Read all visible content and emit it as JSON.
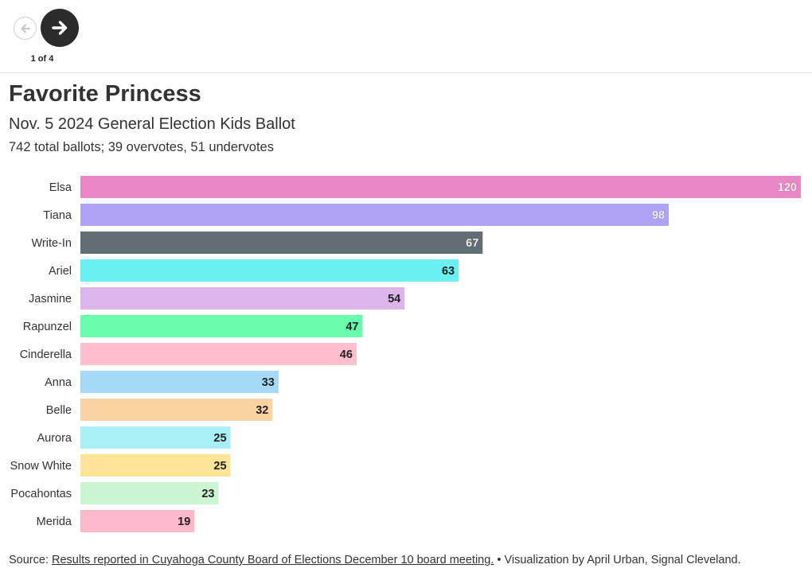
{
  "navigation": {
    "prev_icon": "arrow-left-icon",
    "next_icon": "arrow-right-icon",
    "page_indicator": "1 of 4"
  },
  "header": {
    "title": "Favorite Princess",
    "subtitle": "Nov. 5 2024 General Election Kids Ballot",
    "note": "742 total ballots; 39 overvotes, 51 undervotes"
  },
  "chart_data": {
    "type": "bar",
    "orientation": "horizontal",
    "title": "Favorite Princess",
    "subtitle": "Nov. 5 2024 General Election Kids Ballot",
    "xlabel": "",
    "ylabel": "",
    "grid": false,
    "legend": "none",
    "xlim": [
      0,
      120
    ],
    "categories": [
      "Elsa",
      "Tiana",
      "Write-In",
      "Ariel",
      "Jasmine",
      "Rapunzel",
      "Cinderella",
      "Anna",
      "Belle",
      "Aurora",
      "Snow White",
      "Pocahontas",
      "Merida"
    ],
    "values": [
      120,
      98,
      67,
      63,
      54,
      47,
      46,
      33,
      32,
      25,
      25,
      23,
      19
    ],
    "colors": [
      "#ea87c5",
      "#b0a2f5",
      "#616e73",
      "#69f0f3",
      "#dcb5eb",
      "#66fead",
      "#ffbecb",
      "#a4daf6",
      "#f8d5a3",
      "#a8f0f3",
      "#fde497",
      "#cbf5d3",
      "#feb8cb"
    ],
    "label_colors": [
      "#ffffff",
      "#ffffff",
      "#ffffff",
      "#222222",
      "#222222",
      "#222222",
      "#222222",
      "#222222",
      "#222222",
      "#222222",
      "#222222",
      "#222222",
      "#222222"
    ]
  },
  "footer": {
    "source_prefix": "Source: ",
    "source_link": "Results reported in Cuyahoga County Board of Elections December 10 board meeting.",
    "credit": " • Visualization by April Urban, Signal Cleveland."
  }
}
